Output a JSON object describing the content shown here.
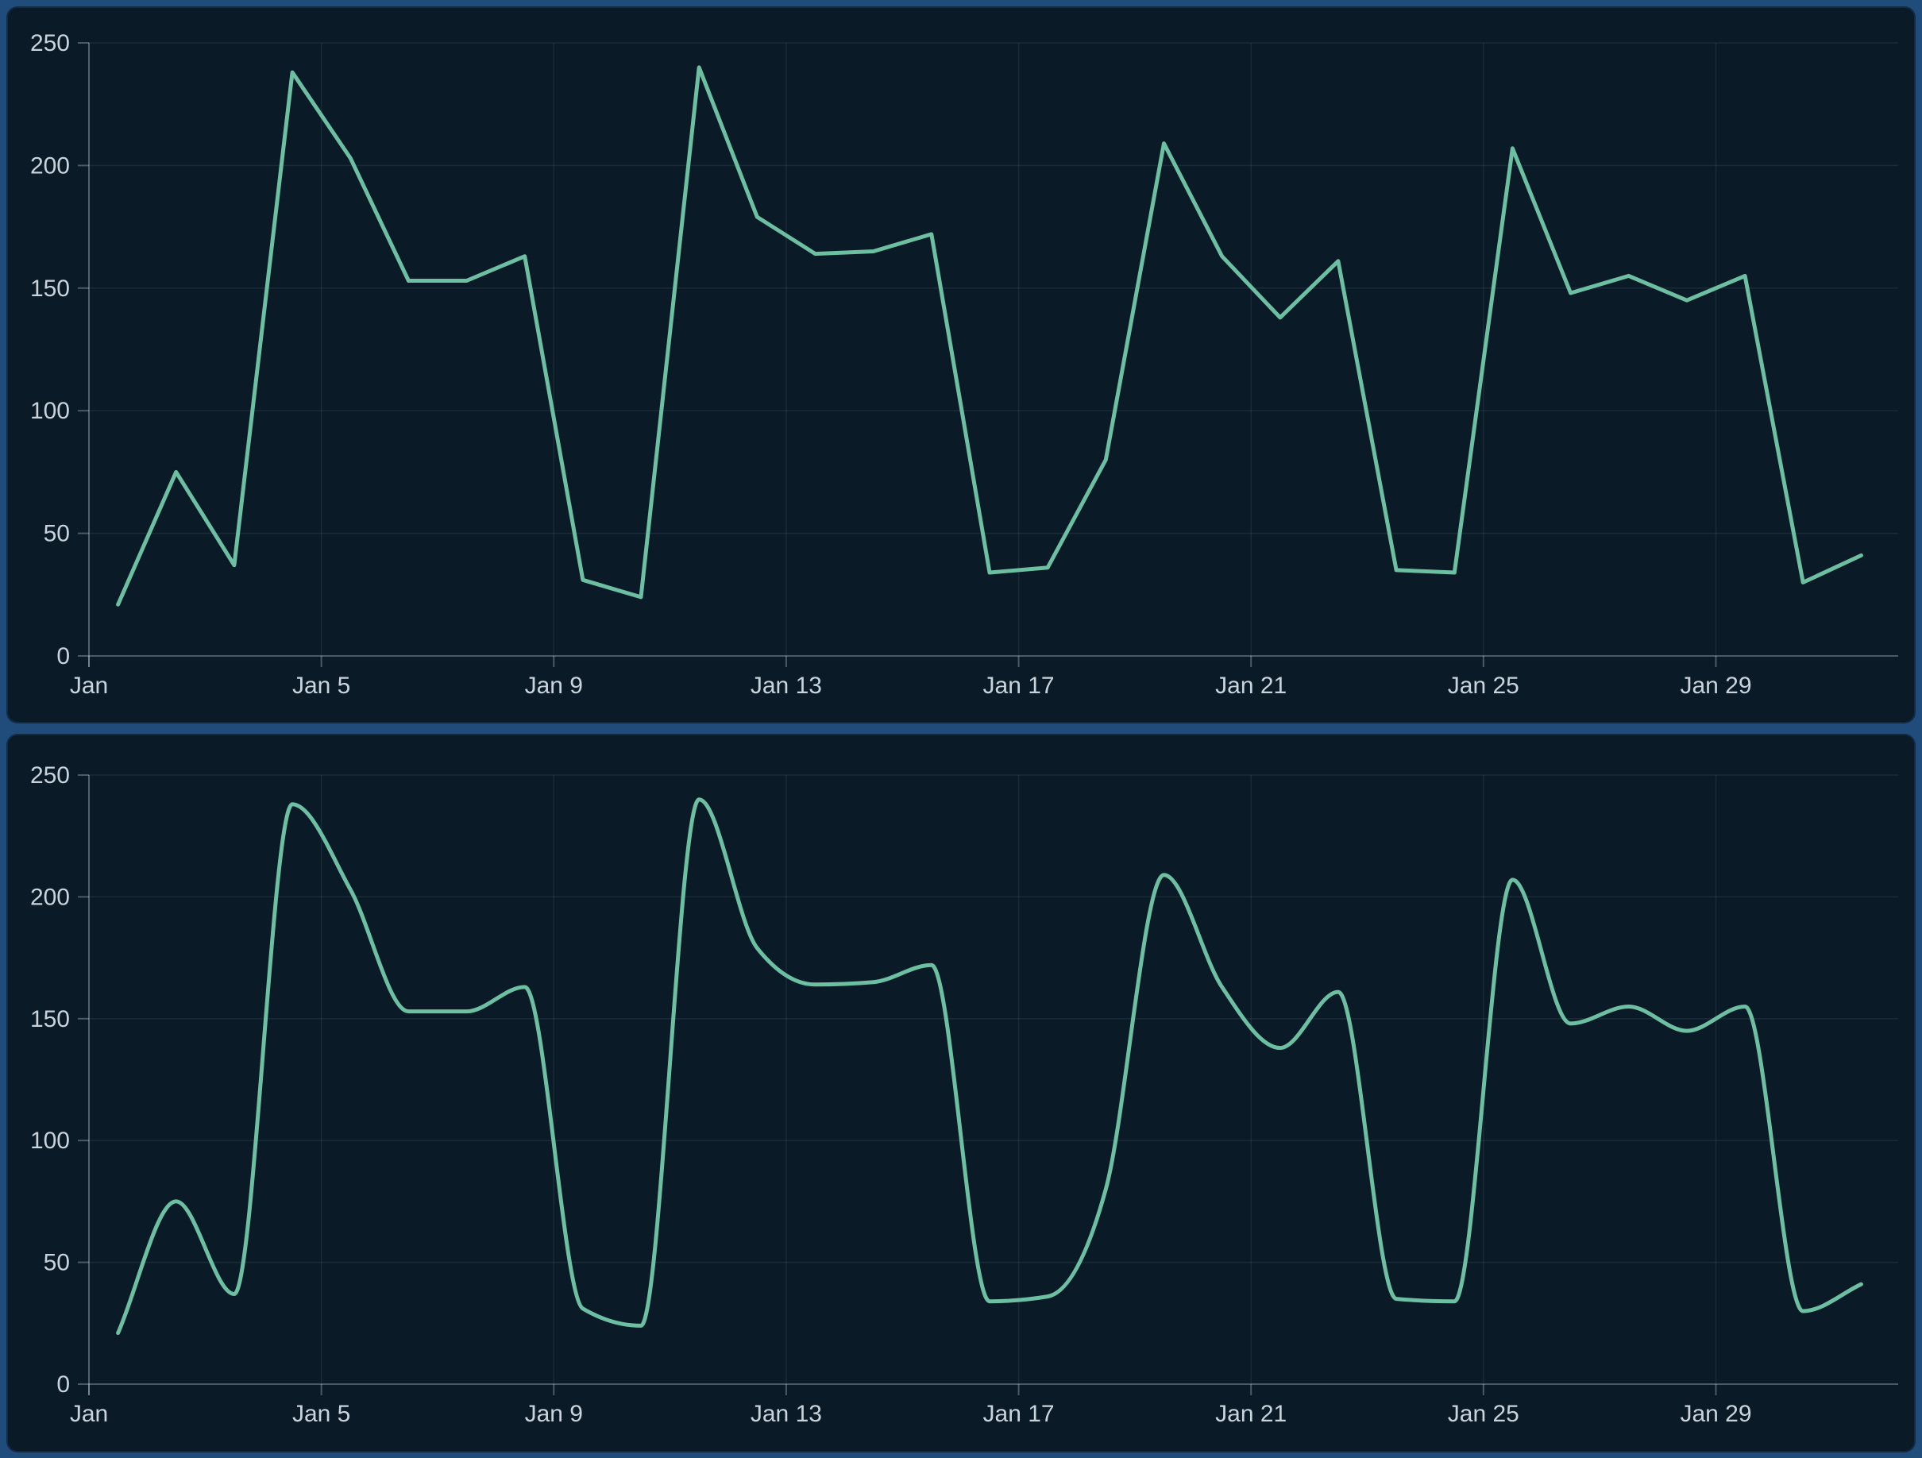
{
  "colors": {
    "frame_background": "#204c7c",
    "panel_background": "#0b1a27",
    "series_line": "#6dbfa2",
    "gridline": "rgba(148,163,184,0.12)",
    "axis_line": "rgba(203,214,226,0.34)",
    "tick_label": "#c9d3dc"
  },
  "chart_data": [
    {
      "id": "linear",
      "type": "line",
      "line_style": "linear",
      "title": "",
      "xlabel": "",
      "ylabel": "",
      "legend": "none",
      "grid": true,
      "ylim": [
        0,
        250
      ],
      "y_ticks": [
        0,
        50,
        100,
        150,
        200,
        250
      ],
      "x_tick_labels": [
        "Jan",
        "Jan 5",
        "Jan 9",
        "Jan 13",
        "Jan 17",
        "Jan 21",
        "Jan 25",
        "Jan 29"
      ],
      "x_tick_day_indexes": [
        0,
        4,
        8,
        12,
        16,
        20,
        24,
        28
      ],
      "categories": [
        "Jan 1",
        "Jan 2",
        "Jan 3",
        "Jan 4",
        "Jan 5",
        "Jan 6",
        "Jan 7",
        "Jan 8",
        "Jan 9",
        "Jan 10",
        "Jan 11",
        "Jan 12",
        "Jan 13",
        "Jan 14",
        "Jan 15",
        "Jan 16",
        "Jan 17",
        "Jan 18",
        "Jan 19",
        "Jan 20",
        "Jan 21",
        "Jan 22",
        "Jan 23",
        "Jan 24",
        "Jan 25",
        "Jan 26",
        "Jan 27",
        "Jan 28",
        "Jan 29",
        "Jan 30",
        "Jan 31"
      ],
      "values": [
        21,
        75,
        37,
        238,
        203,
        153,
        153,
        163,
        31,
        24,
        240,
        179,
        164,
        165,
        172,
        34,
        36,
        80,
        209,
        163,
        138,
        161,
        35,
        34,
        207,
        148,
        155,
        145,
        155,
        30,
        41
      ]
    },
    {
      "id": "smooth",
      "type": "line",
      "line_style": "smooth",
      "title": "",
      "xlabel": "",
      "ylabel": "",
      "legend": "none",
      "grid": true,
      "ylim": [
        0,
        250
      ],
      "y_ticks": [
        0,
        50,
        100,
        150,
        200,
        250
      ],
      "x_tick_labels": [
        "Jan",
        "Jan 5",
        "Jan 9",
        "Jan 13",
        "Jan 17",
        "Jan 21",
        "Jan 25",
        "Jan 29"
      ],
      "x_tick_day_indexes": [
        0,
        4,
        8,
        12,
        16,
        20,
        24,
        28
      ],
      "categories": [
        "Jan 1",
        "Jan 2",
        "Jan 3",
        "Jan 4",
        "Jan 5",
        "Jan 6",
        "Jan 7",
        "Jan 8",
        "Jan 9",
        "Jan 10",
        "Jan 11",
        "Jan 12",
        "Jan 13",
        "Jan 14",
        "Jan 15",
        "Jan 16",
        "Jan 17",
        "Jan 18",
        "Jan 19",
        "Jan 20",
        "Jan 21",
        "Jan 22",
        "Jan 23",
        "Jan 24",
        "Jan 25",
        "Jan 26",
        "Jan 27",
        "Jan 28",
        "Jan 29",
        "Jan 30",
        "Jan 31"
      ],
      "values": [
        21,
        75,
        37,
        238,
        203,
        153,
        153,
        163,
        31,
        24,
        240,
        179,
        164,
        165,
        172,
        34,
        36,
        80,
        209,
        163,
        138,
        161,
        35,
        34,
        207,
        148,
        155,
        145,
        155,
        30,
        41
      ]
    }
  ]
}
